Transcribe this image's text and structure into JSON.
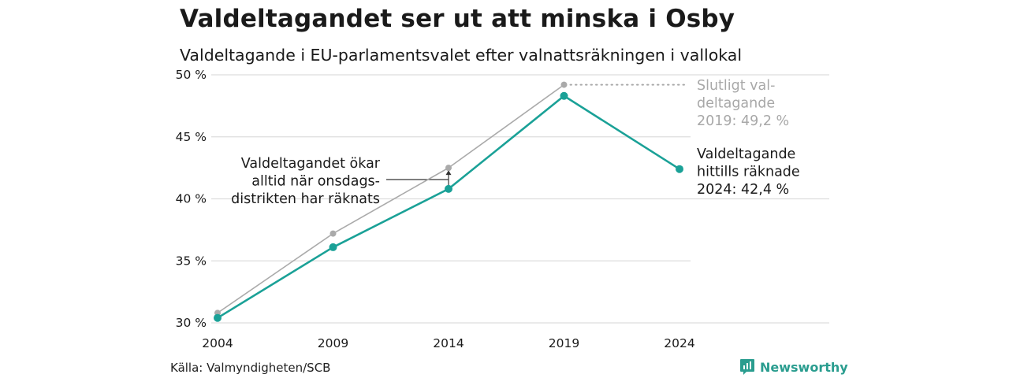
{
  "header": {
    "title": "Valdeltagandet ser ut att minska i Osby",
    "subtitle": "Valdeltagande i EU-parlamentsvalet efter valnattsräkningen i vallokal"
  },
  "chart_data": {
    "type": "line",
    "x": [
      2004,
      2009,
      2014,
      2019,
      2024
    ],
    "xtick_labels": [
      "2004",
      "2009",
      "2014",
      "2019",
      "2024"
    ],
    "ytick_labels": [
      "30 %",
      "35 %",
      "40 %",
      "45 %",
      "50 %"
    ],
    "ylim": [
      30,
      50
    ],
    "grid": true,
    "series": [
      {
        "key": "final",
        "values": [
          30.8,
          37.2,
          42.5,
          49.2,
          null
        ],
        "color": "#aaaaaa"
      },
      {
        "key": "counted",
        "values": [
          30.4,
          36.1,
          40.8,
          48.3,
          42.4
        ],
        "color": "#1aa197"
      }
    ],
    "annotations": {
      "final_2019": [
        "Slutligt val-",
        "deltagande",
        "2019: 49,2 %"
      ],
      "counted_2024": [
        "Valdeltagande",
        "hittills räknade",
        "2024: 42,4 %"
      ],
      "increase_note": [
        "Valdeltagandet ökar",
        "alltid när onsdags-",
        "distrikten har räknats"
      ]
    }
  },
  "footer": {
    "source": "Källa: Valmyndigheten/SCB",
    "brand": "Newsworthy",
    "brand_icon": "bar-chart-icon",
    "brand_color": "#2a9d8f"
  }
}
